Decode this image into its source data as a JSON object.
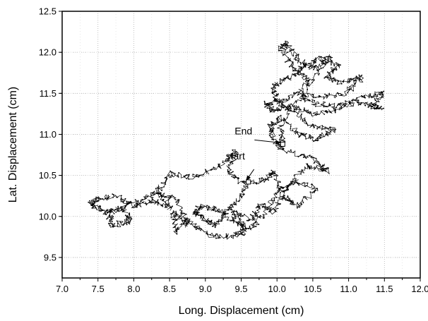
{
  "chart_data": {
    "type": "line",
    "title": "",
    "xlabel": "Long. Displacement (cm)",
    "ylabel": "Lat. Displacement (cm)",
    "xlim": [
      7.0,
      12.0
    ],
    "ylim": [
      9.25,
      12.5
    ],
    "x_ticks": [
      "7.0",
      "7.5",
      "8.0",
      "8.5",
      "9.0",
      "9.5",
      "10.0",
      "10.5",
      "11.0",
      "11.5",
      "12.0"
    ],
    "y_ticks": [
      "9.5",
      "10.0",
      "10.5",
      "11.0",
      "11.5",
      "12.0",
      "12.5"
    ],
    "grid": true,
    "line_color": "#000000",
    "series": [
      {
        "values": [
          [
            9.6,
            10.42
          ],
          [
            9.45,
            10.2
          ],
          [
            9.3,
            10.05
          ],
          [
            9.15,
            9.9
          ],
          [
            9.0,
            9.95
          ],
          [
            8.85,
            10.05
          ],
          [
            8.95,
            10.12
          ],
          [
            9.2,
            10.08
          ],
          [
            9.45,
            9.92
          ],
          [
            9.6,
            9.85
          ],
          [
            9.8,
            10.0
          ],
          [
            10.0,
            10.3
          ],
          [
            10.25,
            10.42
          ],
          [
            10.55,
            10.35
          ],
          [
            10.3,
            10.12
          ],
          [
            10.1,
            10.25
          ],
          [
            9.95,
            10.55
          ],
          [
            9.85,
            10.45
          ],
          [
            9.55,
            10.4
          ],
          [
            9.3,
            10.55
          ],
          [
            9.45,
            10.8
          ],
          [
            9.2,
            10.62
          ],
          [
            8.85,
            10.48
          ],
          [
            8.5,
            10.52
          ],
          [
            8.35,
            10.32
          ],
          [
            8.5,
            10.1
          ],
          [
            8.25,
            10.2
          ],
          [
            8.0,
            10.12
          ],
          [
            7.75,
            10.25
          ],
          [
            7.5,
            10.22
          ],
          [
            7.4,
            10.15
          ],
          [
            7.6,
            10.05
          ],
          [
            7.85,
            10.1
          ],
          [
            7.95,
            9.95
          ],
          [
            7.7,
            9.88
          ],
          [
            7.65,
            10.05
          ],
          [
            8.05,
            10.18
          ],
          [
            8.3,
            10.28
          ],
          [
            8.6,
            10.2
          ],
          [
            8.75,
            9.95
          ],
          [
            8.6,
            9.82
          ],
          [
            8.55,
            10.05
          ],
          [
            8.8,
            9.9
          ],
          [
            9.05,
            9.78
          ],
          [
            9.35,
            9.75
          ],
          [
            9.55,
            9.82
          ],
          [
            9.4,
            10.05
          ],
          [
            9.65,
            9.95
          ],
          [
            9.75,
            10.15
          ],
          [
            9.95,
            10.05
          ],
          [
            10.15,
            10.35
          ],
          [
            10.4,
            10.62
          ],
          [
            10.7,
            10.55
          ],
          [
            10.5,
            10.7
          ],
          [
            10.1,
            10.8
          ],
          [
            9.95,
            10.95
          ],
          [
            9.9,
            11.1
          ],
          [
            10.05,
            11.2
          ],
          [
            10.3,
            11.0
          ],
          [
            10.55,
            10.95
          ],
          [
            10.8,
            11.05
          ],
          [
            10.5,
            11.1
          ],
          [
            10.2,
            11.3
          ],
          [
            10.0,
            11.4
          ],
          [
            9.95,
            11.6
          ],
          [
            10.2,
            11.7
          ],
          [
            10.4,
            11.85
          ],
          [
            10.6,
            11.92
          ],
          [
            10.85,
            11.85
          ],
          [
            10.7,
            11.7
          ],
          [
            10.9,
            11.62
          ],
          [
            11.2,
            11.7
          ],
          [
            10.95,
            11.5
          ],
          [
            10.6,
            11.45
          ],
          [
            10.3,
            11.5
          ],
          [
            10.5,
            11.38
          ],
          [
            10.85,
            11.35
          ],
          [
            11.2,
            11.45
          ],
          [
            11.48,
            11.5
          ],
          [
            11.3,
            11.35
          ],
          [
            11.45,
            11.32
          ],
          [
            11.1,
            11.4
          ],
          [
            10.8,
            11.3
          ],
          [
            10.5,
            11.25
          ],
          [
            10.2,
            11.35
          ],
          [
            9.95,
            11.28
          ],
          [
            9.85,
            11.38
          ],
          [
            10.15,
            11.42
          ],
          [
            10.45,
            11.65
          ],
          [
            10.25,
            11.8
          ],
          [
            10.05,
            12.05
          ],
          [
            10.15,
            12.1
          ],
          [
            10.3,
            11.9
          ],
          [
            10.55,
            11.8
          ],
          [
            10.75,
            11.95
          ],
          [
            10.4,
            11.55
          ],
          [
            10.05,
            11.1
          ],
          [
            10.08,
            10.88
          ]
        ]
      }
    ],
    "annotations": [
      {
        "text": "End",
        "x": 10.08,
        "y": 10.88
      },
      {
        "text": "start",
        "x": 9.6,
        "y": 10.42
      }
    ]
  }
}
